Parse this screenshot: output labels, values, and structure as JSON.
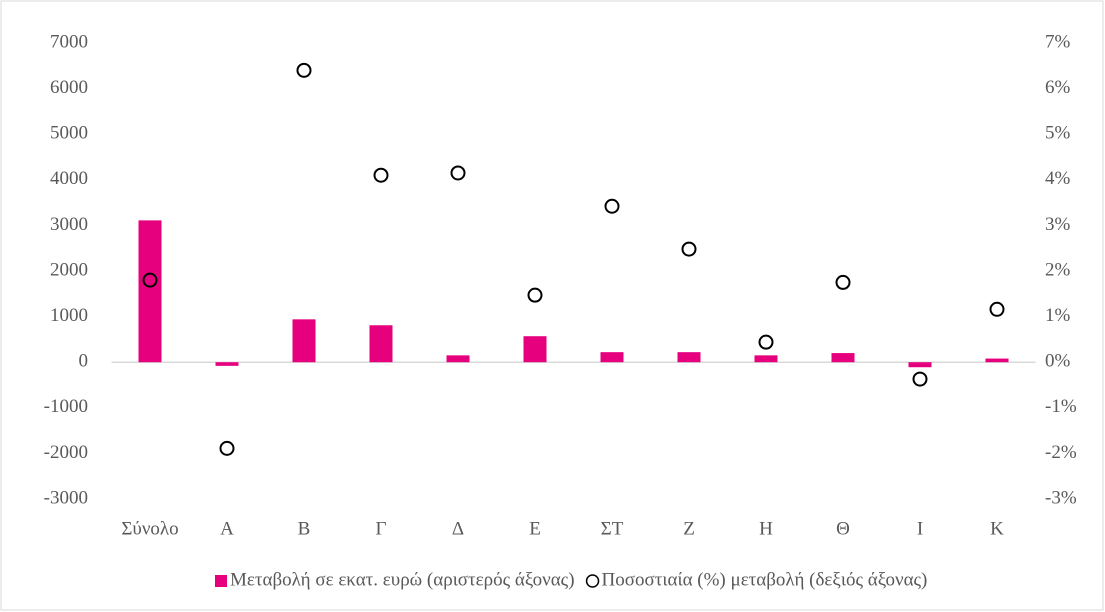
{
  "chart_data": {
    "type": "bar",
    "categories": [
      "Σύνολο",
      "Α",
      "Β",
      "Γ",
      "Δ",
      "Ε",
      "ΣΤ",
      "Ζ",
      "Η",
      "Θ",
      "Ι",
      "Κ"
    ],
    "series": [
      {
        "name": "Μεταβολή σε εκατ. ευρώ (αριστερός άξονας)",
        "type": "bar",
        "color": "#e6007e",
        "values": [
          3110,
          -80,
          940,
          810,
          150,
          570,
          220,
          220,
          150,
          200,
          -110,
          80
        ]
      },
      {
        "name": "Ποσοστιαία (%) μεταβολή (δεξιός άξονας)",
        "type": "scatter",
        "axis": "y2",
        "color": "#000000",
        "values": [
          1.8,
          -1.89,
          6.4,
          4.1,
          4.15,
          1.47,
          3.42,
          2.48,
          0.44,
          1.75,
          -0.37,
          1.16
        ]
      }
    ],
    "ylim": [
      -3000,
      7000
    ],
    "yticks": [
      -3000,
      -2000,
      -1000,
      0,
      1000,
      2000,
      3000,
      4000,
      5000,
      6000,
      7000
    ],
    "y2lim": [
      -3,
      7
    ],
    "y2ticks": [
      {
        "value": -3,
        "label": "-3%"
      },
      {
        "value": -2,
        "label": "-2%"
      },
      {
        "value": -1,
        "label": "-1%"
      },
      {
        "value": 0,
        "label": "0%"
      },
      {
        "value": 1,
        "label": "1%"
      },
      {
        "value": 2,
        "label": "2%"
      },
      {
        "value": 3,
        "label": "3%"
      },
      {
        "value": 4,
        "label": "4%"
      },
      {
        "value": 5,
        "label": "5%"
      },
      {
        "value": 6,
        "label": "6%"
      },
      {
        "value": 7,
        "label": "7%"
      }
    ],
    "grid": false,
    "legend": "bottom"
  }
}
